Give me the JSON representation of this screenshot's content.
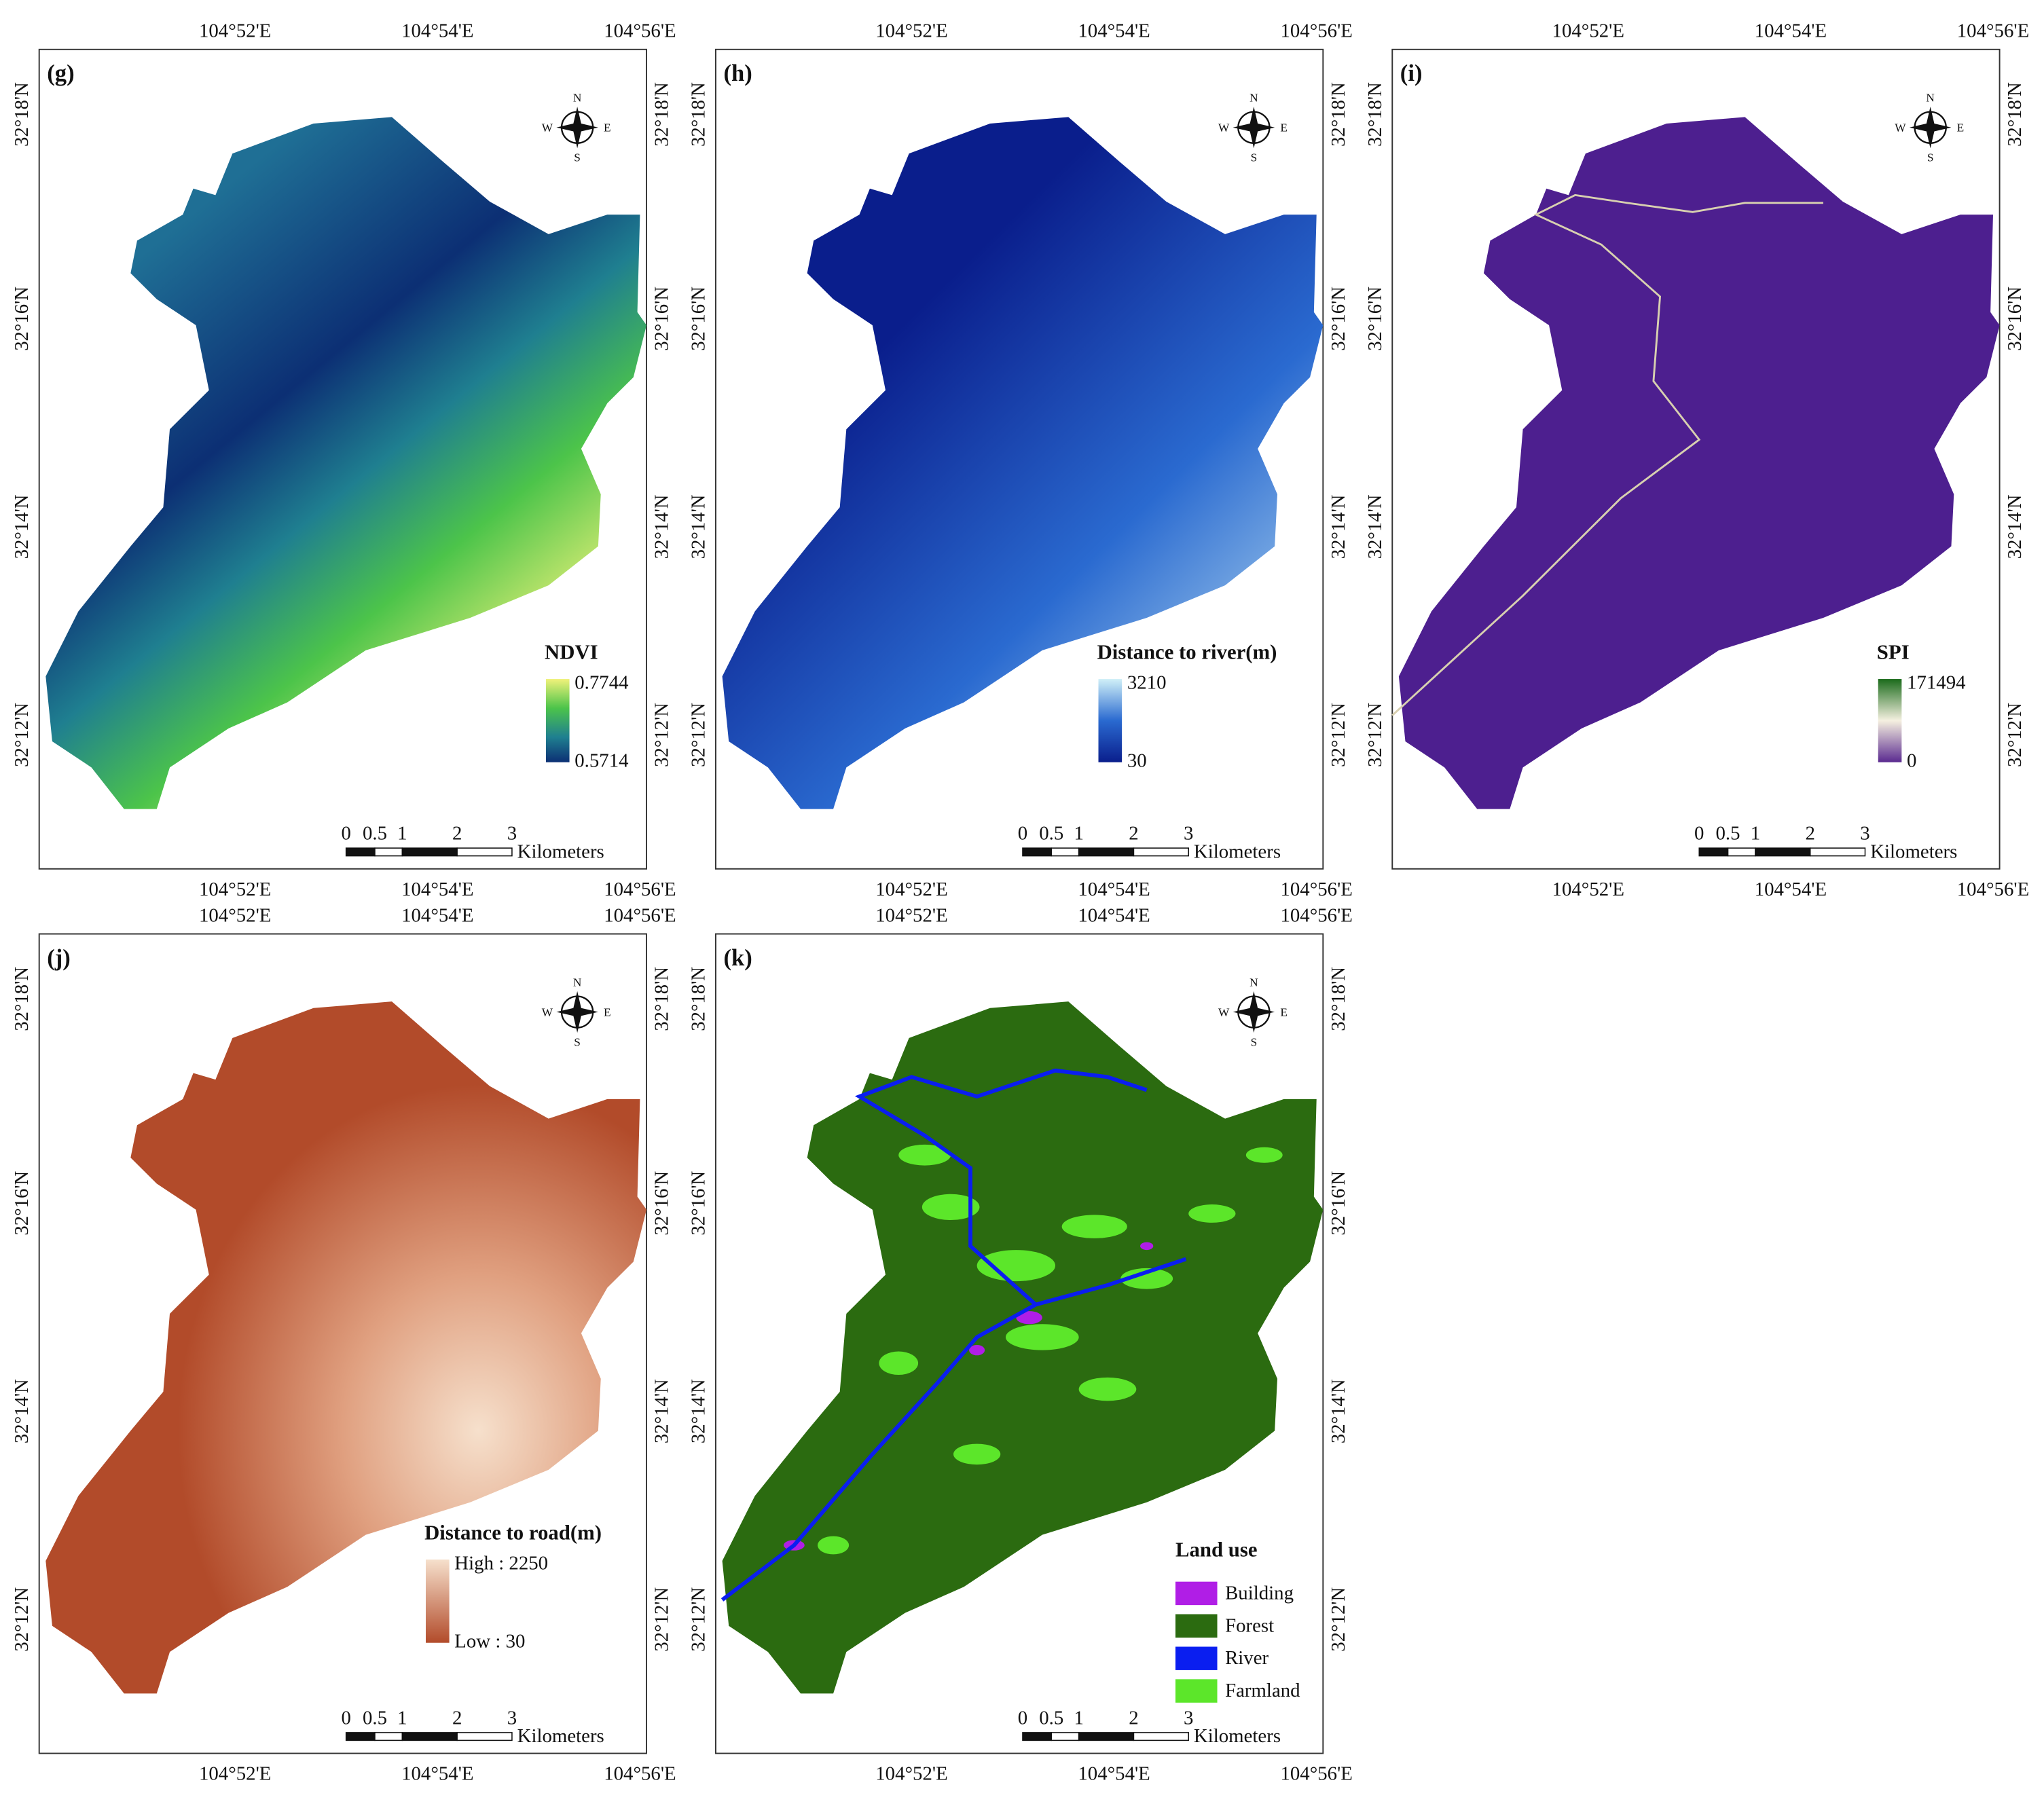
{
  "coordinates": {
    "longitude": [
      "104°52'E",
      "104°54'E",
      "104°56'E"
    ],
    "latitude": [
      "32°18'N",
      "32°16'N",
      "32°14'N",
      "32°12'N"
    ]
  },
  "scale_bar": {
    "ticks": [
      "0",
      "0.5",
      "1",
      "2",
      "3"
    ],
    "unit": "Kilometers"
  },
  "compass": {
    "north": "N",
    "south": "S",
    "east": "E",
    "west": "W"
  },
  "panels": [
    {
      "label": "(g)",
      "legend": {
        "title": "NDVI",
        "high": "0.7744",
        "low": "0.5714"
      }
    },
    {
      "label": "(h)",
      "legend": {
        "title": "Distance to river(m)",
        "high": "3210",
        "low": "30"
      }
    },
    {
      "label": "(i)",
      "legend": {
        "title": "SPI",
        "high": "171494",
        "low": "0"
      }
    },
    {
      "label": "(j)",
      "legend": {
        "title": "Distance to road(m)",
        "high": "High : 2250",
        "low": "Low : 30"
      }
    },
    {
      "label": "(k)",
      "legend": {
        "title": "Land use",
        "items": [
          {
            "name": "Building",
            "color": "#b01ee6"
          },
          {
            "name": "Forest",
            "color": "#2b6b10"
          },
          {
            "name": "River",
            "color": "#0a1ef0"
          },
          {
            "name": "Farmland",
            "color": "#5ce62a"
          }
        ]
      }
    }
  ]
}
